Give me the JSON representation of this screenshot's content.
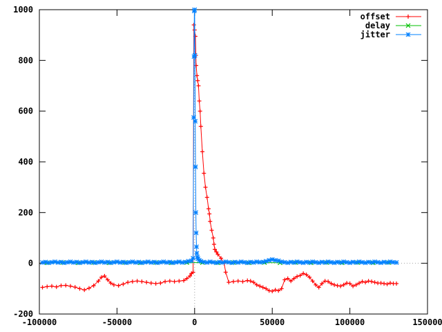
{
  "chart_data": {
    "type": "scatter",
    "title": "",
    "xlabel": "",
    "ylabel": "",
    "xlim": [
      -100000,
      150000
    ],
    "ylim": [
      -200,
      1000
    ],
    "x_ticks": [
      -100000,
      -50000,
      0,
      50000,
      100000,
      150000
    ],
    "x_tick_labels": [
      "-100000",
      "-50000",
      "0",
      "50000",
      "100000",
      "150000"
    ],
    "y_ticks": [
      -200,
      0,
      200,
      400,
      600,
      800,
      1000
    ],
    "y_tick_labels": [
      "-200",
      "0",
      "200",
      "400",
      "600",
      "800",
      "1000"
    ],
    "grid": false,
    "zero_axes": "dotted",
    "legend_position": "top-right",
    "series": [
      {
        "name": "offset",
        "color": "#ff0000",
        "marker": "plus",
        "points": [
          [
            -98000,
            -95
          ],
          [
            -95000,
            -92
          ],
          [
            -92000,
            -90
          ],
          [
            -89000,
            -93
          ],
          [
            -86000,
            -88
          ],
          [
            -83000,
            -87
          ],
          [
            -80000,
            -90
          ],
          [
            -77000,
            -94
          ],
          [
            -74000,
            -100
          ],
          [
            -71000,
            -105
          ],
          [
            -68000,
            -98
          ],
          [
            -65000,
            -88
          ],
          [
            -62000,
            -70
          ],
          [
            -60000,
            -55
          ],
          [
            -58000,
            -50
          ],
          [
            -56000,
            -65
          ],
          [
            -54000,
            -78
          ],
          [
            -52000,
            -85
          ],
          [
            -49000,
            -88
          ],
          [
            -46000,
            -82
          ],
          [
            -43000,
            -75
          ],
          [
            -40000,
            -72
          ],
          [
            -37000,
            -70
          ],
          [
            -34000,
            -72
          ],
          [
            -31000,
            -75
          ],
          [
            -28000,
            -78
          ],
          [
            -25000,
            -80
          ],
          [
            -22000,
            -78
          ],
          [
            -19000,
            -72
          ],
          [
            -16000,
            -70
          ],
          [
            -13000,
            -72
          ],
          [
            -10000,
            -70
          ],
          [
            -7000,
            -68
          ],
          [
            -5000,
            -60
          ],
          [
            -3000,
            -50
          ],
          [
            -2000,
            -40
          ],
          [
            -1000,
            -35
          ],
          [
            -500,
            940
          ],
          [
            0,
            920
          ],
          [
            500,
            895
          ],
          [
            800,
            820
          ],
          [
            1000,
            780
          ],
          [
            1500,
            740
          ],
          [
            2000,
            720
          ],
          [
            2500,
            700
          ],
          [
            3000,
            640
          ],
          [
            3500,
            600
          ],
          [
            4000,
            540
          ],
          [
            5000,
            440
          ],
          [
            6000,
            355
          ],
          [
            7000,
            300
          ],
          [
            8000,
            260
          ],
          [
            9000,
            215
          ],
          [
            9500,
            195
          ],
          [
            10000,
            165
          ],
          [
            11000,
            130
          ],
          [
            12000,
            100
          ],
          [
            12500,
            75
          ],
          [
            13000,
            55
          ],
          [
            14000,
            45
          ],
          [
            15000,
            35
          ],
          [
            17000,
            20
          ],
          [
            19000,
            0
          ],
          [
            20000,
            -35
          ],
          [
            22000,
            -75
          ],
          [
            25000,
            -72
          ],
          [
            28000,
            -70
          ],
          [
            31000,
            -72
          ],
          [
            34000,
            -68
          ],
          [
            36000,
            -70
          ],
          [
            38000,
            -75
          ],
          [
            40000,
            -85
          ],
          [
            42000,
            -90
          ],
          [
            44000,
            -95
          ],
          [
            46000,
            -100
          ],
          [
            48000,
            -108
          ],
          [
            50000,
            -110
          ],
          [
            52000,
            -105
          ],
          [
            54000,
            -108
          ],
          [
            56000,
            -100
          ],
          [
            58000,
            -65
          ],
          [
            60000,
            -60
          ],
          [
            62000,
            -70
          ],
          [
            64000,
            -60
          ],
          [
            66000,
            -52
          ],
          [
            68000,
            -48
          ],
          [
            70000,
            -40
          ],
          [
            72000,
            -45
          ],
          [
            74000,
            -55
          ],
          [
            76000,
            -70
          ],
          [
            78000,
            -85
          ],
          [
            80000,
            -95
          ],
          [
            82000,
            -80
          ],
          [
            84000,
            -70
          ],
          [
            86000,
            -72
          ],
          [
            88000,
            -80
          ],
          [
            90000,
            -85
          ],
          [
            92000,
            -88
          ],
          [
            94000,
            -90
          ],
          [
            96000,
            -85
          ],
          [
            98000,
            -78
          ],
          [
            100000,
            -80
          ],
          [
            102000,
            -90
          ],
          [
            104000,
            -85
          ],
          [
            106000,
            -78
          ],
          [
            108000,
            -72
          ],
          [
            110000,
            -75
          ],
          [
            112000,
            -70
          ],
          [
            114000,
            -72
          ],
          [
            116000,
            -75
          ],
          [
            118000,
            -78
          ],
          [
            120000,
            -78
          ],
          [
            122000,
            -80
          ],
          [
            124000,
            -82
          ],
          [
            126000,
            -78
          ],
          [
            128000,
            -80
          ],
          [
            130000,
            -80
          ]
        ]
      },
      {
        "name": "delay",
        "color": "#00c000",
        "marker": "cross",
        "points": [
          [
            -95000,
            2
          ],
          [
            -85000,
            3
          ],
          [
            -75000,
            2
          ],
          [
            -65000,
            3
          ],
          [
            -55000,
            2
          ],
          [
            -45000,
            3
          ],
          [
            -35000,
            2
          ],
          [
            -25000,
            3
          ],
          [
            -15000,
            2
          ],
          [
            -5000,
            3
          ],
          [
            5000,
            3
          ],
          [
            15000,
            2
          ],
          [
            25000,
            3
          ],
          [
            35000,
            2
          ],
          [
            45000,
            3
          ],
          [
            55000,
            2
          ],
          [
            65000,
            3
          ],
          [
            75000,
            2
          ],
          [
            85000,
            3
          ],
          [
            95000,
            2
          ],
          [
            105000,
            3
          ],
          [
            115000,
            2
          ],
          [
            125000,
            3
          ]
        ]
      },
      {
        "name": "jitter",
        "color": "#0080ff",
        "marker": "star",
        "points": [
          [
            -98000,
            3
          ],
          [
            -96000,
            5
          ],
          [
            -94000,
            2
          ],
          [
            -92000,
            4
          ],
          [
            -90000,
            6
          ],
          [
            -88000,
            3
          ],
          [
            -86000,
            5
          ],
          [
            -84000,
            2
          ],
          [
            -82000,
            4
          ],
          [
            -80000,
            6
          ],
          [
            -78000,
            3
          ],
          [
            -76000,
            5
          ],
          [
            -74000,
            2
          ],
          [
            -72000,
            4
          ],
          [
            -70000,
            6
          ],
          [
            -68000,
            3
          ],
          [
            -66000,
            5
          ],
          [
            -64000,
            2
          ],
          [
            -62000,
            4
          ],
          [
            -60000,
            6
          ],
          [
            -58000,
            3
          ],
          [
            -56000,
            5
          ],
          [
            -54000,
            2
          ],
          [
            -52000,
            4
          ],
          [
            -50000,
            6
          ],
          [
            -48000,
            3
          ],
          [
            -46000,
            5
          ],
          [
            -44000,
            2
          ],
          [
            -42000,
            4
          ],
          [
            -40000,
            6
          ],
          [
            -38000,
            3
          ],
          [
            -36000,
            5
          ],
          [
            -34000,
            2
          ],
          [
            -32000,
            4
          ],
          [
            -30000,
            6
          ],
          [
            -28000,
            3
          ],
          [
            -26000,
            5
          ],
          [
            -24000,
            2
          ],
          [
            -22000,
            4
          ],
          [
            -20000,
            6
          ],
          [
            -18000,
            3
          ],
          [
            -16000,
            5
          ],
          [
            -14000,
            2
          ],
          [
            -12000,
            4
          ],
          [
            -10000,
            6
          ],
          [
            -8000,
            3
          ],
          [
            -6000,
            5
          ],
          [
            -4000,
            8
          ],
          [
            -2000,
            10
          ],
          [
            -1000,
            20
          ],
          [
            -600,
            575
          ],
          [
            -400,
            815
          ],
          [
            -200,
            995
          ],
          [
            0,
            1000
          ],
          [
            200,
            820
          ],
          [
            400,
            560
          ],
          [
            600,
            380
          ],
          [
            800,
            200
          ],
          [
            1000,
            120
          ],
          [
            1200,
            65
          ],
          [
            1400,
            40
          ],
          [
            1800,
            25
          ],
          [
            2200,
            18
          ],
          [
            3000,
            12
          ],
          [
            4000,
            8
          ],
          [
            6000,
            5
          ],
          [
            8000,
            3
          ],
          [
            10000,
            6
          ],
          [
            12000,
            4
          ],
          [
            14000,
            2
          ],
          [
            16000,
            5
          ],
          [
            18000,
            3
          ],
          [
            20000,
            6
          ],
          [
            22000,
            4
          ],
          [
            24000,
            2
          ],
          [
            26000,
            5
          ],
          [
            28000,
            3
          ],
          [
            30000,
            6
          ],
          [
            32000,
            4
          ],
          [
            34000,
            2
          ],
          [
            36000,
            5
          ],
          [
            38000,
            3
          ],
          [
            40000,
            6
          ],
          [
            42000,
            4
          ],
          [
            44000,
            5
          ],
          [
            46000,
            8
          ],
          [
            48000,
            12
          ],
          [
            50000,
            15
          ],
          [
            52000,
            12
          ],
          [
            54000,
            10
          ],
          [
            56000,
            6
          ],
          [
            58000,
            4
          ],
          [
            60000,
            2
          ],
          [
            62000,
            5
          ],
          [
            64000,
            3
          ],
          [
            66000,
            6
          ],
          [
            68000,
            4
          ],
          [
            70000,
            2
          ],
          [
            72000,
            5
          ],
          [
            74000,
            3
          ],
          [
            76000,
            6
          ],
          [
            78000,
            4
          ],
          [
            80000,
            2
          ],
          [
            82000,
            5
          ],
          [
            84000,
            3
          ],
          [
            86000,
            6
          ],
          [
            88000,
            4
          ],
          [
            90000,
            2
          ],
          [
            92000,
            5
          ],
          [
            94000,
            3
          ],
          [
            96000,
            6
          ],
          [
            98000,
            4
          ],
          [
            100000,
            2
          ],
          [
            102000,
            5
          ],
          [
            104000,
            3
          ],
          [
            106000,
            6
          ],
          [
            108000,
            4
          ],
          [
            110000,
            2
          ],
          [
            112000,
            5
          ],
          [
            114000,
            3
          ],
          [
            116000,
            6
          ],
          [
            118000,
            4
          ],
          [
            120000,
            2
          ],
          [
            122000,
            5
          ],
          [
            124000,
            3
          ],
          [
            126000,
            6
          ],
          [
            128000,
            4
          ],
          [
            130000,
            3
          ]
        ]
      }
    ]
  }
}
